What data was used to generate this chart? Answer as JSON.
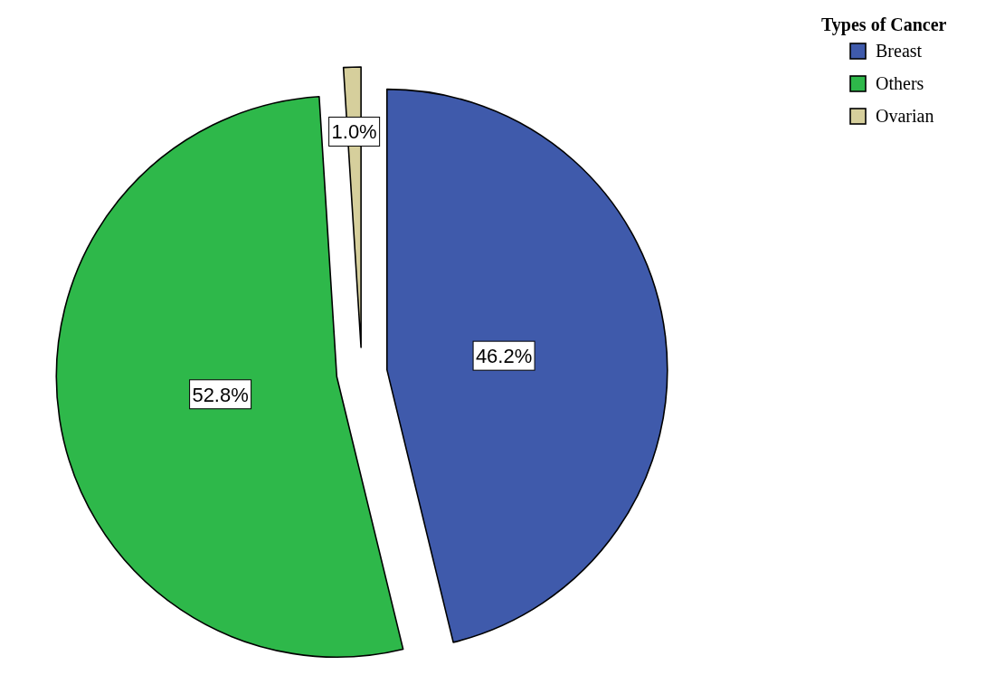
{
  "chart_data": {
    "type": "pie",
    "legend_title": "Types of Cancer",
    "categories": [
      "Breast",
      "Others",
      "Ovarian"
    ],
    "values": [
      46.2,
      52.8,
      1.0
    ],
    "colors": [
      "#3f5aab",
      "#2eb84a",
      "#d6cf9c"
    ],
    "value_labels": [
      "46.2%",
      "52.8%",
      "1.0%"
    ],
    "legend": "top right"
  }
}
